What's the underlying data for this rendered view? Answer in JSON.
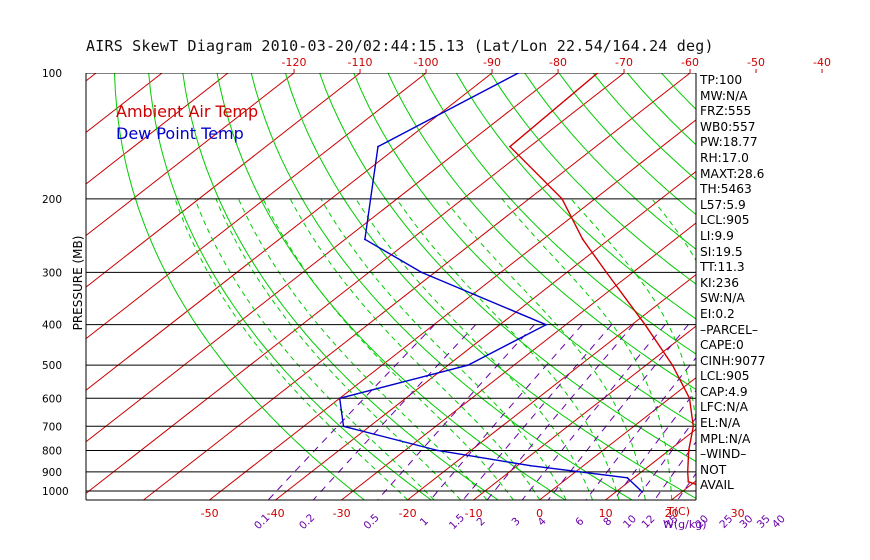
{
  "title": "AIRS SkewT Diagram 2010-03-20/02:44:15.13 (Lat/Lon 22.54/164.24 deg)",
  "colors": {
    "ambient": "#d00000",
    "dewpoint": "#0000cc",
    "isotherm": "#cc0000",
    "dry_adiabat": "#00cc00",
    "moist_adiabat": "#00cc00",
    "mixing_ratio": "#6a00aa",
    "isobar": "#000000",
    "axis_label": "#cc0000",
    "mixing_label": "#6a00aa"
  },
  "chart_data": {
    "type": "line",
    "subtype": "skew-t log-p",
    "title": "AIRS SkewT Diagram 2010-03-20/02:44:15.13 (Lat/Lon 22.54/164.24 deg)",
    "ylabel": "PRESSURE (MB)",
    "xlabel": "T(C)",
    "mixing_ratio_unit": "W(g/kg)",
    "plim": [
      100,
      1050
    ],
    "top_temp_ticks": [
      -120,
      -110,
      -100,
      -90,
      -80,
      -70,
      -60,
      -50,
      -40
    ],
    "bottom_temp_ticks": [
      -50,
      -40,
      -30,
      -20,
      -10,
      0,
      10,
      20,
      30
    ],
    "pressure_levels": [
      100,
      200,
      300,
      400,
      500,
      600,
      700,
      800,
      900,
      1000
    ],
    "mixing_ratio_labels": [
      "0.1",
      "0.2",
      "0.5",
      "1",
      "1.5",
      "2",
      "3",
      "4",
      "6",
      "8",
      "10",
      "12",
      "15",
      "20",
      "25",
      "30",
      "35",
      "40"
    ],
    "mixing_ratio_values": [
      0.1,
      0.2,
      0.5,
      1,
      1.5,
      2,
      3,
      4,
      6,
      8,
      10,
      12,
      15,
      20,
      25,
      30,
      35,
      40
    ],
    "legend": [
      "Ambient Air Temp",
      "Dew Point Temp"
    ],
    "legend_position": "top-left",
    "series": [
      {
        "name": "Ambient Air Temp",
        "points": [
          {
            "p": 100,
            "t": -74
          },
          {
            "p": 150,
            "t": -73
          },
          {
            "p": 200,
            "t": -55
          },
          {
            "p": 250,
            "t": -44
          },
          {
            "p": 300,
            "t": -34
          },
          {
            "p": 400,
            "t": -18
          },
          {
            "p": 500,
            "t": -6
          },
          {
            "p": 600,
            "t": 3
          },
          {
            "p": 700,
            "t": 9
          },
          {
            "p": 800,
            "t": 13
          },
          {
            "p": 900,
            "t": 17
          },
          {
            "p": 950,
            "t": 19
          },
          {
            "p": 1010,
            "t": 26
          }
        ]
      },
      {
        "name": "Dew Point Temp",
        "points": [
          {
            "p": 100,
            "t": -86
          },
          {
            "p": 150,
            "t": -93
          },
          {
            "p": 200,
            "t": -84
          },
          {
            "p": 250,
            "t": -77
          },
          {
            "p": 300,
            "t": -62
          },
          {
            "p": 400,
            "t": -33
          },
          {
            "p": 500,
            "t": -37
          },
          {
            "p": 600,
            "t": -50
          },
          {
            "p": 700,
            "t": -44
          },
          {
            "p": 800,
            "t": -25
          },
          {
            "p": 870,
            "t": -8
          },
          {
            "p": 930,
            "t": 9
          },
          {
            "p": 1005,
            "t": 14
          }
        ]
      }
    ]
  },
  "stats": [
    "TP:100",
    "MW:N/A",
    "FRZ:555",
    "WB0:557",
    "PW:18.77",
    "RH:17.0",
    "MAXT:28.6",
    "TH:5463",
    "L57:5.9",
    "LCL:905",
    "LI:9.9",
    "SI:19.5",
    "TT:11.3",
    "KI:236",
    "SW:N/A",
    "EI:0.2",
    "–PARCEL–",
    "CAPE:0",
    "CINH:9077",
    "LCL:905",
    "CAP:4.9",
    "LFC:N/A",
    "EL:N/A",
    "MPL:N/A",
    "–WIND–",
    "NOT",
    "AVAIL"
  ]
}
